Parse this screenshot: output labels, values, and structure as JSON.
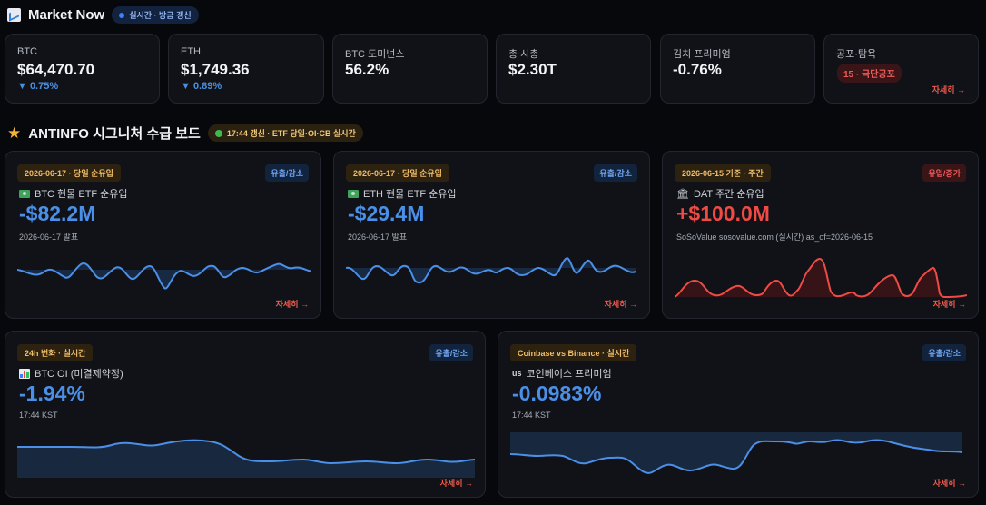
{
  "market": {
    "title": "Market Now",
    "badge": "실시간 · 방금 갱신",
    "stats": [
      {
        "label": "BTC",
        "value": "$64,470.70",
        "change": "▼ 0.75%"
      },
      {
        "label": "ETH",
        "value": "$1,749.36",
        "change": "▼ 0.89%"
      },
      {
        "label": "BTC 도미넌스",
        "value": "56.2%"
      },
      {
        "label": "총 시총",
        "value": "$2.30T"
      },
      {
        "label": "김치 프리미엄",
        "value": "-0.76%"
      },
      {
        "label": "공포·탐욕",
        "badge": "15 · 극단공포",
        "more": "자세히 →"
      }
    ]
  },
  "board": {
    "title": "ANTINFO 시그니처 수급 보드",
    "badge": "17:44 갱신 · ETF 당일·OI·CB 실시간",
    "cards": [
      {
        "tag": "2026-06-17 · 당일 순유입",
        "dir": "유출/감소",
        "name": "BTC 현물 ETF 순유입",
        "value": "-$82.2M",
        "sub": "2026-06-17 발표",
        "more": "자세히 →"
      },
      {
        "tag": "2026-06-17 · 당일 순유입",
        "dir": "유출/감소",
        "name": "ETH 현물 ETF 순유입",
        "value": "-$29.4M",
        "sub": "2026-06-17 발표",
        "more": "자세히 →"
      },
      {
        "tag": "2026-06-15 기준 · 주간",
        "dir": "유입/증가",
        "name": "DAT 주간 순유입",
        "value": "+$100.0M",
        "sub": "SoSoValue sosovalue.com (실시간) as_of=2026-06-15",
        "more": "자세히 →"
      },
      {
        "tag": "24h 변화 · 실시간",
        "dir": "유출/감소",
        "name": "BTC OI (미결제약정)",
        "value": "-1.94%",
        "sub": "17:44 KST",
        "more": "자세히 →"
      },
      {
        "tag": "Coinbase vs Binance · 실시간",
        "dir": "유출/감소",
        "icon_text": "us",
        "name": "코인베이스 프리미엄",
        "value": "-0.0983%",
        "sub": "17:44 KST",
        "more": "자세히 →"
      }
    ]
  },
  "colors": {
    "blue": "#4a8fe8",
    "red": "#f04a45",
    "amber": "#f0bd6b"
  }
}
